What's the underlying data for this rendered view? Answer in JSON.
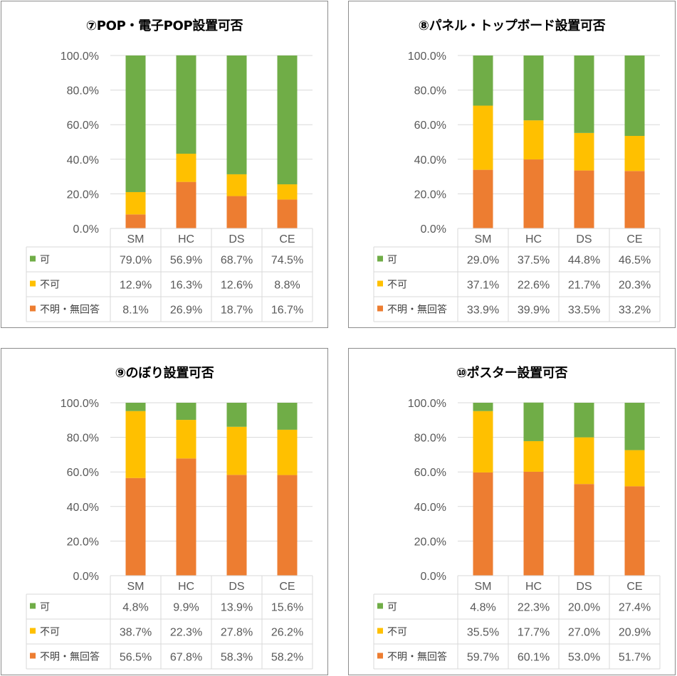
{
  "chart_data": [
    {
      "type": "bar",
      "stacked": true,
      "title": "⑦POP・電子POP設置可否",
      "categories": [
        "SM",
        "HC",
        "DS",
        "CE"
      ],
      "y_ticks": [
        "0.0%",
        "20.0%",
        "40.0%",
        "60.0%",
        "80.0%",
        "100.0%"
      ],
      "ylim": [
        0,
        100
      ],
      "series": [
        {
          "name": "可",
          "color": "#70AD47",
          "values": [
            79.0,
            56.9,
            68.7,
            74.5
          ],
          "labels": [
            "79.0%",
            "56.9%",
            "68.7%",
            "74.5%"
          ]
        },
        {
          "name": "不可",
          "color": "#FFC000",
          "values": [
            12.9,
            16.3,
            12.6,
            8.8
          ],
          "labels": [
            "12.9%",
            "16.3%",
            "12.6%",
            "8.8%"
          ]
        },
        {
          "name": "不明・無回答",
          "color": "#ED7D31",
          "values": [
            8.1,
            26.9,
            18.7,
            16.7
          ],
          "labels": [
            "8.1%",
            "26.9%",
            "18.7%",
            "16.7%"
          ]
        }
      ]
    },
    {
      "type": "bar",
      "stacked": true,
      "title": "⑧パネル・トップボード設置可否",
      "categories": [
        "SM",
        "HC",
        "DS",
        "CE"
      ],
      "y_ticks": [
        "0.0%",
        "20.0%",
        "40.0%",
        "60.0%",
        "80.0%",
        "100.0%"
      ],
      "ylim": [
        0,
        100
      ],
      "series": [
        {
          "name": "可",
          "color": "#70AD47",
          "values": [
            29.0,
            37.5,
            44.8,
            46.5
          ],
          "labels": [
            "29.0%",
            "37.5%",
            "44.8%",
            "46.5%"
          ]
        },
        {
          "name": "不可",
          "color": "#FFC000",
          "values": [
            37.1,
            22.6,
            21.7,
            20.3
          ],
          "labels": [
            "37.1%",
            "22.6%",
            "21.7%",
            "20.3%"
          ]
        },
        {
          "name": "不明・無回答",
          "color": "#ED7D31",
          "values": [
            33.9,
            39.9,
            33.5,
            33.2
          ],
          "labels": [
            "33.9%",
            "39.9%",
            "33.5%",
            "33.2%"
          ]
        }
      ]
    },
    {
      "type": "bar",
      "stacked": true,
      "title": "⑨のぼり設置可否",
      "categories": [
        "SM",
        "HC",
        "DS",
        "CE"
      ],
      "y_ticks": [
        "0.0%",
        "20.0%",
        "40.0%",
        "60.0%",
        "80.0%",
        "100.0%"
      ],
      "ylim": [
        0,
        100
      ],
      "series": [
        {
          "name": "可",
          "color": "#70AD47",
          "values": [
            4.8,
            9.9,
            13.9,
            15.6
          ],
          "labels": [
            "4.8%",
            "9.9%",
            "13.9%",
            "15.6%"
          ]
        },
        {
          "name": "不可",
          "color": "#FFC000",
          "values": [
            38.7,
            22.3,
            27.8,
            26.2
          ],
          "labels": [
            "38.7%",
            "22.3%",
            "27.8%",
            "26.2%"
          ]
        },
        {
          "name": "不明・無回答",
          "color": "#ED7D31",
          "values": [
            56.5,
            67.8,
            58.3,
            58.2
          ],
          "labels": [
            "56.5%",
            "67.8%",
            "58.3%",
            "58.2%"
          ]
        }
      ]
    },
    {
      "type": "bar",
      "stacked": true,
      "title": "⑩ポスター設置可否",
      "categories": [
        "SM",
        "HC",
        "DS",
        "CE"
      ],
      "y_ticks": [
        "0.0%",
        "20.0%",
        "40.0%",
        "60.0%",
        "80.0%",
        "100.0%"
      ],
      "ylim": [
        0,
        100
      ],
      "series": [
        {
          "name": "可",
          "color": "#70AD47",
          "values": [
            4.8,
            22.3,
            20.0,
            27.4
          ],
          "labels": [
            "4.8%",
            "22.3%",
            "20.0%",
            "27.4%"
          ]
        },
        {
          "name": "不可",
          "color": "#FFC000",
          "values": [
            35.5,
            17.7,
            27.0,
            20.9
          ],
          "labels": [
            "35.5%",
            "17.7%",
            "27.0%",
            "20.9%"
          ]
        },
        {
          "name": "不明・無回答",
          "color": "#ED7D31",
          "values": [
            59.7,
            60.1,
            53.0,
            51.7
          ],
          "labels": [
            "59.7%",
            "60.1%",
            "53.0%",
            "51.7%"
          ]
        }
      ]
    }
  ]
}
